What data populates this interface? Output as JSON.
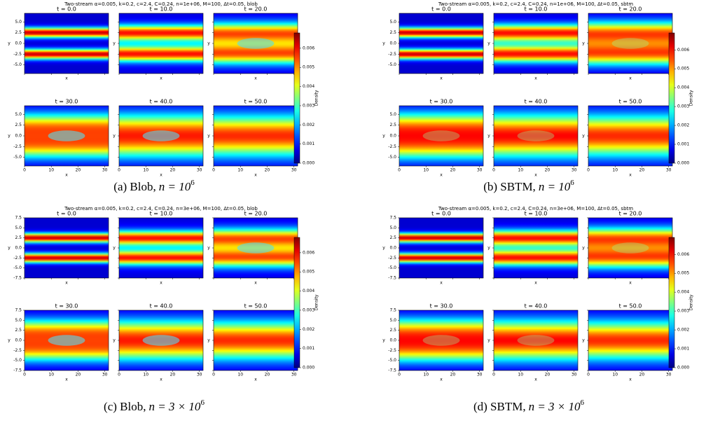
{
  "panels": [
    {
      "title": "Two-stream α=0.005, k=0.2, c=2.4, C=0.24, n=1e+06, M=100, Δt=0.05, blob",
      "subplot_titles": [
        "t = 0.0",
        "t = 10.0",
        "t = 20.0",
        "t = 30.0",
        "t = 40.0",
        "t = 50.0"
      ],
      "x_label": "x",
      "y_label": "y",
      "xlim": [
        0,
        31.4
      ],
      "ylim": [
        -7,
        7
      ],
      "xticks": [
        0,
        10,
        20,
        30
      ],
      "yticks": [
        {
          "value": 5,
          "label": "5.0"
        },
        {
          "value": 2.5,
          "label": "2.5"
        },
        {
          "value": 0,
          "label": "0.0"
        },
        {
          "value": -2.5,
          "label": "-2.5"
        },
        {
          "value": -5,
          "label": "-5.0"
        }
      ],
      "colorbar_label": "Density",
      "clim": [
        0,
        0.0068
      ],
      "colorbar_ticks": [
        {
          "value": 0,
          "label": "0.000"
        },
        {
          "value": 0.001,
          "label": "0.001"
        },
        {
          "value": 0.002,
          "label": "0.002"
        },
        {
          "value": 0.003,
          "label": "0.003"
        },
        {
          "value": 0.004,
          "label": "0.004"
        },
        {
          "value": 0.005,
          "label": "0.005"
        },
        {
          "value": 0.006,
          "label": "0.006"
        }
      ],
      "caption": {
        "label": "(a) Blob,",
        "math": "n = 10",
        "exponent": "6"
      }
    },
    {
      "title": "Two-stream α=0.005, k=0.2, c=2.4, C=0.24, n=1e+06, M=100, Δt=0.05, sbtm",
      "subplot_titles": [
        "t = 0.0",
        "t = 10.0",
        "t = 20.0",
        "t = 30.0",
        "t = 40.0",
        "t = 50.0"
      ],
      "x_label": "x",
      "y_label": "y",
      "xlim": [
        0,
        31.4
      ],
      "ylim": [
        -7,
        7
      ],
      "xticks": [
        0,
        10,
        20,
        30
      ],
      "yticks": [
        {
          "value": 5,
          "label": "5.0"
        },
        {
          "value": 2.5,
          "label": "2.5"
        },
        {
          "value": 0,
          "label": "0.0"
        },
        {
          "value": -2.5,
          "label": "-2.5"
        },
        {
          "value": -5,
          "label": "-5.0"
        }
      ],
      "colorbar_label": "Density",
      "clim": [
        0,
        0.0069
      ],
      "colorbar_ticks": [
        {
          "value": 0,
          "label": "0.000"
        },
        {
          "value": 0.001,
          "label": "0.001"
        },
        {
          "value": 0.002,
          "label": "0.002"
        },
        {
          "value": 0.003,
          "label": "0.003"
        },
        {
          "value": 0.004,
          "label": "0.004"
        },
        {
          "value": 0.005,
          "label": "0.005"
        },
        {
          "value": 0.006,
          "label": "0.006"
        }
      ],
      "caption": {
        "label": "(b) SBTM,",
        "math": "n = 10",
        "exponent": "6"
      }
    },
    {
      "title": "Two-stream α=0.005, k=0.2, c=2.4, C=0.24, n=3e+06, M=100, Δt=0.05, blob",
      "subplot_titles": [
        "t = 0.0",
        "t = 10.0",
        "t = 20.0",
        "t = 30.0",
        "t = 40.0",
        "t = 50.0"
      ],
      "x_label": "x",
      "y_label": "y",
      "xlim": [
        0,
        31.4
      ],
      "ylim": [
        -7.5,
        7.5
      ],
      "xticks": [
        0,
        10,
        20,
        30
      ],
      "yticks": [
        {
          "value": 7.5,
          "label": "7.5"
        },
        {
          "value": 5,
          "label": "5.0"
        },
        {
          "value": 2.5,
          "label": "2.5"
        },
        {
          "value": 0,
          "label": "0.0"
        },
        {
          "value": -2.5,
          "label": "-2.5"
        },
        {
          "value": -5,
          "label": "-5.0"
        },
        {
          "value": -7.5,
          "label": "-7.5"
        }
      ],
      "colorbar_label": "Density",
      "clim": [
        0,
        0.0068
      ],
      "colorbar_ticks": [
        {
          "value": 0,
          "label": "0.000"
        },
        {
          "value": 0.001,
          "label": "0.001"
        },
        {
          "value": 0.002,
          "label": "0.002"
        },
        {
          "value": 0.003,
          "label": "0.003"
        },
        {
          "value": 0.004,
          "label": "0.004"
        },
        {
          "value": 0.005,
          "label": "0.005"
        },
        {
          "value": 0.006,
          "label": "0.006"
        }
      ],
      "caption": {
        "label": "(c) Blob,",
        "math": "n = 3 × 10",
        "exponent": "6"
      }
    },
    {
      "title": "Two-stream α=0.005, k=0.2, c=2.4, C=0.24, n=3e+06, M=100, Δt=0.05, sbtm",
      "subplot_titles": [
        "t = 0.0",
        "t = 10.0",
        "t = 20.0",
        "t = 30.0",
        "t = 40.0",
        "t = 50.0"
      ],
      "x_label": "x",
      "y_label": "y",
      "xlim": [
        0,
        31.4
      ],
      "ylim": [
        -7.5,
        7.5
      ],
      "xticks": [
        0,
        10,
        20,
        30
      ],
      "yticks": [
        {
          "value": 7.5,
          "label": "7.5"
        },
        {
          "value": 5,
          "label": "5.0"
        },
        {
          "value": 2.5,
          "label": "2.5"
        },
        {
          "value": 0,
          "label": "0.0"
        },
        {
          "value": -2.5,
          "label": "-2.5"
        },
        {
          "value": -5,
          "label": "-5.0"
        },
        {
          "value": -7.5,
          "label": "-7.5"
        }
      ],
      "colorbar_label": "Density",
      "clim": [
        0,
        0.0069
      ],
      "colorbar_ticks": [
        {
          "value": 0,
          "label": "0.000"
        },
        {
          "value": 0.001,
          "label": "0.001"
        },
        {
          "value": 0.002,
          "label": "0.002"
        },
        {
          "value": 0.003,
          "label": "0.003"
        },
        {
          "value": 0.004,
          "label": "0.004"
        },
        {
          "value": 0.005,
          "label": "0.005"
        },
        {
          "value": 0.006,
          "label": "0.006"
        }
      ],
      "caption": {
        "label": "(d) SBTM,",
        "math": "n = 3 × 10",
        "exponent": "6"
      }
    }
  ]
}
